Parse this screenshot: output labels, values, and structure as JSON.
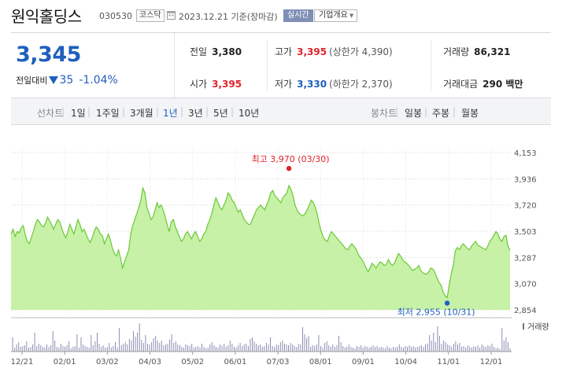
{
  "header": {
    "name": "원익홀딩스",
    "code": "030530",
    "market": "코스닥",
    "as_of": "2023.12.21  기준(장마감)",
    "realtime_label": "실시간",
    "company_info_label": "기업개요"
  },
  "summary": {
    "price": "3,345",
    "change_label": "전일대비",
    "change_amount": "35",
    "change_pct": "-1.04%",
    "prev_close_label": "전일",
    "prev_close": "3,380",
    "high_label": "고가",
    "high": "3,395",
    "upper_limit": "(상한가 4,390)",
    "volume_label": "거래량",
    "volume": "86,321",
    "open_label": "시가",
    "open": "3,395",
    "low_label": "저가",
    "low": "3,330",
    "lower_limit": "(하한가 2,370)",
    "value_label": "거래대금",
    "value": "290 백만"
  },
  "tabs": {
    "line_caption": "선차트",
    "line_periods": [
      "1일",
      "1주일",
      "3개월",
      "1년",
      "3년",
      "5년",
      "10년"
    ],
    "selected": "1년",
    "candle_caption": "봉차트",
    "candle_periods": [
      "일봉",
      "주봉",
      "월봉"
    ]
  },
  "chart_data": {
    "type": "area",
    "fill_color": "#c6f1a6",
    "line_color": "#6bc936",
    "ylim": [
      2854,
      4153
    ],
    "y_ticks": [
      "4,153",
      "3,936",
      "3,720",
      "3,503",
      "3,287",
      "3,070",
      "2,854"
    ],
    "x_ticks": [
      "12/21",
      "02/01",
      "03/02",
      "04/03",
      "05/02",
      "06/01",
      "07/03",
      "08/01",
      "09/01",
      "10/04",
      "11/01",
      "12/01"
    ],
    "high_label": "최고 3,970 (03/30)",
    "low_label": "최저 2,955 (10/31)",
    "volume_label": "거래량",
    "prices": [
      3480,
      3520,
      3460,
      3500,
      3490,
      3530,
      3550,
      3480,
      3420,
      3400,
      3450,
      3500,
      3560,
      3600,
      3580,
      3550,
      3540,
      3570,
      3620,
      3590,
      3560,
      3520,
      3560,
      3600,
      3580,
      3530,
      3480,
      3450,
      3500,
      3560,
      3520,
      3480,
      3540,
      3600,
      3560,
      3500,
      3520,
      3480,
      3440,
      3410,
      3450,
      3500,
      3540,
      3520,
      3480,
      3470,
      3400,
      3440,
      3480,
      3430,
      3360,
      3320,
      3300,
      3350,
      3280,
      3200,
      3250,
      3300,
      3350,
      3480,
      3550,
      3600,
      3650,
      3700,
      3760,
      3860,
      3820,
      3700,
      3650,
      3600,
      3620,
      3680,
      3740,
      3700,
      3720,
      3680,
      3620,
      3560,
      3500,
      3580,
      3600,
      3540,
      3500,
      3460,
      3420,
      3440,
      3480,
      3500,
      3470,
      3440,
      3480,
      3500,
      3460,
      3420,
      3440,
      3480,
      3500,
      3560,
      3600,
      3650,
      3720,
      3780,
      3740,
      3700,
      3680,
      3720,
      3760,
      3820,
      3800,
      3760,
      3740,
      3700,
      3660,
      3680,
      3640,
      3600,
      3580,
      3560,
      3560,
      3600,
      3640,
      3680,
      3700,
      3720,
      3700,
      3680,
      3720,
      3760,
      3820,
      3840,
      3800,
      3780,
      3760,
      3740,
      3780,
      3800,
      3820,
      3880,
      3850,
      3800,
      3720,
      3680,
      3650,
      3640,
      3630,
      3650,
      3680,
      3720,
      3760,
      3740,
      3700,
      3640,
      3560,
      3500,
      3450,
      3430,
      3420,
      3470,
      3500,
      3480,
      3460,
      3440,
      3420,
      3400,
      3380,
      3360,
      3350,
      3380,
      3400,
      3380,
      3360,
      3320,
      3290,
      3270,
      3240,
      3200,
      3170,
      3200,
      3240,
      3220,
      3200,
      3230,
      3250,
      3240,
      3220,
      3230,
      3270,
      3240,
      3220,
      3240,
      3280,
      3320,
      3300,
      3270,
      3250,
      3240,
      3220,
      3200,
      3180,
      3190,
      3200,
      3220,
      3180,
      3160,
      3150,
      3150,
      3170,
      3200,
      3190,
      3160,
      3120,
      3080,
      3060,
      3000,
      2970,
      2955,
      3060,
      3150,
      3220,
      3340,
      3370,
      3350,
      3380,
      3400,
      3380,
      3360,
      3350,
      3380,
      3400,
      3420,
      3390,
      3380,
      3370,
      3360,
      3350,
      3380,
      3420,
      3440,
      3470,
      3500,
      3480,
      3440,
      3420,
      3460,
      3470,
      3380,
      3345
    ],
    "volumes": [
      18,
      5,
      9,
      12,
      6,
      7,
      8,
      13,
      5,
      6,
      9,
      24,
      7,
      10,
      8,
      6,
      5,
      9,
      6,
      8,
      26,
      14,
      6,
      5,
      10,
      7,
      6,
      8,
      13,
      4,
      6,
      7,
      22,
      5,
      18,
      9,
      7,
      6,
      5,
      21,
      8,
      13,
      24,
      10,
      6,
      8,
      5,
      6,
      11,
      5,
      7,
      12,
      5,
      30,
      8,
      10,
      12,
      9,
      16,
      14,
      26,
      19,
      24,
      36,
      15,
      11,
      21,
      10,
      9,
      12,
      17,
      20,
      14,
      11,
      14,
      8,
      9,
      10,
      15,
      22,
      11,
      13,
      9,
      8,
      6,
      5,
      9,
      8,
      7,
      10,
      5,
      6,
      7,
      5,
      10,
      6,
      4,
      5,
      9,
      12,
      8,
      6,
      5,
      9,
      7,
      10,
      6,
      8,
      14,
      10,
      6,
      5,
      8,
      11,
      7,
      9,
      10,
      7,
      16,
      18,
      13,
      10,
      8,
      9,
      6,
      7,
      11,
      9,
      18,
      7,
      6,
      9,
      8,
      12,
      14,
      10,
      9,
      8,
      11,
      9,
      7,
      6,
      10,
      9,
      31,
      22,
      17,
      20,
      6,
      8,
      7,
      9,
      21,
      7,
      5,
      11,
      13,
      8,
      6,
      9,
      6,
      8,
      20,
      12,
      7,
      5,
      6,
      9,
      6,
      5,
      4,
      7,
      6,
      8,
      5,
      7,
      6,
      5,
      6,
      8,
      6,
      7,
      5,
      6,
      5,
      4,
      7,
      5,
      4,
      6,
      5,
      6,
      9,
      6,
      5,
      7,
      6,
      8,
      6,
      7,
      5,
      6,
      7,
      8,
      6,
      9,
      10,
      21,
      14,
      24,
      12,
      32,
      20,
      10,
      14,
      12,
      9,
      8,
      6,
      10,
      13,
      9,
      11,
      6,
      7,
      5,
      8,
      6,
      5,
      7,
      6,
      8,
      5,
      9,
      7,
      6,
      8,
      7,
      10,
      6,
      4,
      5,
      3,
      30,
      14,
      18,
      12,
      4
    ]
  }
}
